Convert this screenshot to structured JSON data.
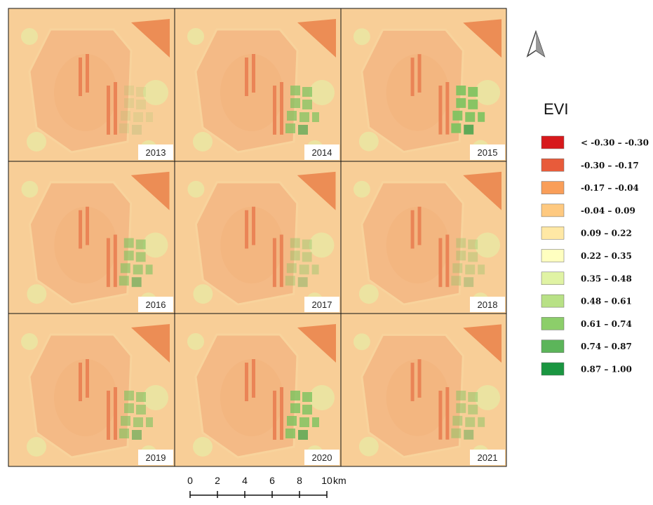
{
  "panels": [
    "2013",
    "2014",
    "2015",
    "2016",
    "2017",
    "2018",
    "2019",
    "2020",
    "2021"
  ],
  "legend": {
    "title": "EVI",
    "items": [
      {
        "label": "< -0.30 – -0.30",
        "color": "#d7191c"
      },
      {
        "label": "-0.30 – -0.17",
        "color": "#e85b3a"
      },
      {
        "label": "-0.17 – -0.04",
        "color": "#f99e59"
      },
      {
        "label": "-0.04 – 0.09",
        "color": "#fec980"
      },
      {
        "label": "0.09 – 0.22",
        "color": "#ffe8a5"
      },
      {
        "label": "0.22 – 0.35",
        "color": "#ffffc0"
      },
      {
        "label": "0.35 – 0.48",
        "color": "#e0f3a4"
      },
      {
        "label": "0.48 – 0.61",
        "color": "#b8e186"
      },
      {
        "label": "0.61 – 0.74",
        "color": "#8cce6a"
      },
      {
        "label": "0.74 – 0.87",
        "color": "#5cb55a"
      },
      {
        "label": "0.87 – 1.00",
        "color": "#1a9641"
      }
    ]
  },
  "scale_bar": {
    "ticks": [
      0,
      2,
      4,
      6,
      8,
      10
    ],
    "unit": "km"
  }
}
